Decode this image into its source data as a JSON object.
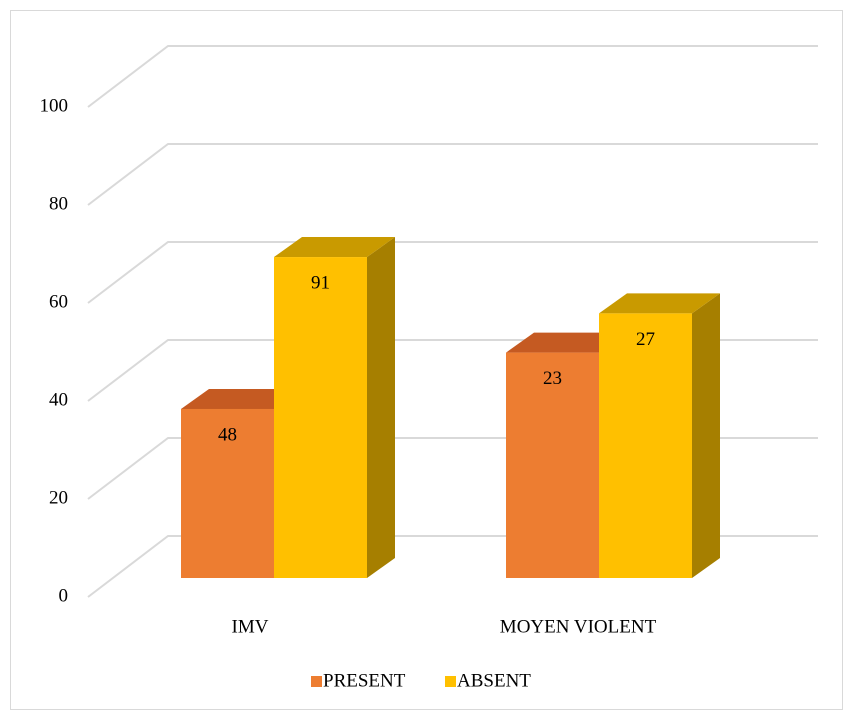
{
  "chart_data": {
    "type": "bar3d",
    "categories": [
      "IMV",
      "MOYEN VIOLENT"
    ],
    "series": [
      {
        "name": "PRESENT",
        "color": "#ed7d31",
        "top_color": "#c55a22",
        "side_color": "#b85a1f",
        "values": [
          34.5,
          46
        ],
        "counts": [
          48,
          23
        ]
      },
      {
        "name": "ABSENT",
        "color": "#ffc000",
        "top_color": "#c99a00",
        "side_color": "#a67f00",
        "values": [
          65.5,
          54
        ],
        "counts": [
          91,
          27
        ]
      }
    ],
    "ylim": [
      0,
      100
    ],
    "yticks": [
      0,
      20,
      40,
      60,
      80,
      100
    ],
    "grid": true,
    "legend": "bottom"
  }
}
